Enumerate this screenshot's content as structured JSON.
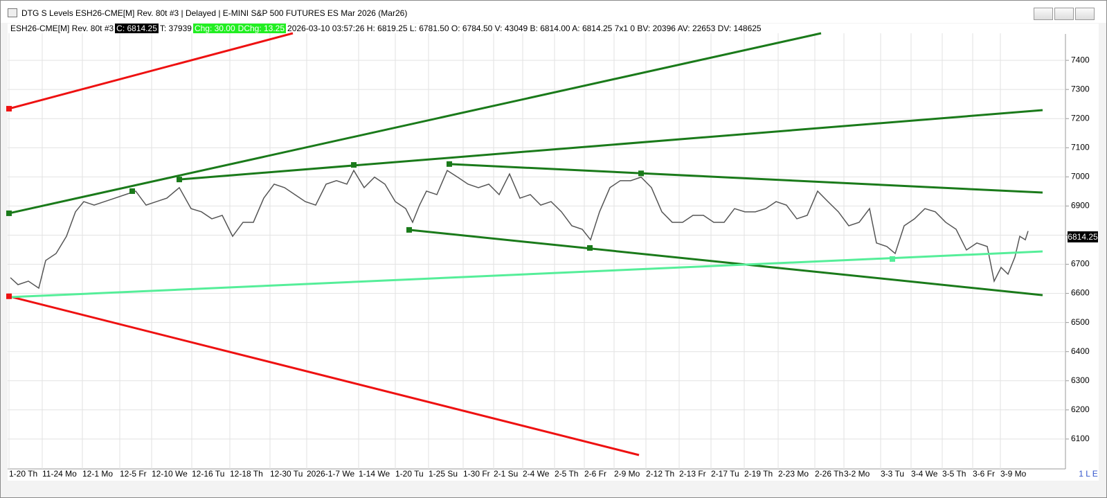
{
  "window": {
    "title": "DTG S Levels ESH26-CME[M]  Rev. 80t #3 | Delayed | E-MINI S&P 500 FUTURES ES Mar 2026 (Mar26)"
  },
  "info_bar": {
    "symbol": "ESH26-CME[M]  Rev. 80t #3",
    "close": "C: 6814.25",
    "ticks": "T: 37939",
    "chg": "Chg: 30.00",
    "dchg": "DChg: 13.25",
    "details": "2026-03-10 03:57:26 H: 6819.25 L: 6781.50 O: 6784.50 V: 43049 B: 6814.00 A: 6814.25 7x1 0 BV: 20396 AV: 22653 DV: 148625"
  },
  "corner_label": "1 L E",
  "chart_data": {
    "type": "line",
    "last_price_label": "6814.25",
    "grid": true,
    "xlim": [
      0,
      1498
    ],
    "ylim": [
      6045,
      7493
    ],
    "yticks": [
      6100,
      6200,
      6300,
      6400,
      6500,
      6600,
      6700,
      6800,
      6900,
      7000,
      7100,
      7200,
      7300,
      7400
    ],
    "xticks": [
      {
        "value": 2,
        "label": "1-20 Th"
      },
      {
        "value": 50,
        "label": "11-24 Mo"
      },
      {
        "value": 108,
        "label": "12-1 Mo"
      },
      {
        "value": 162,
        "label": "12-5 Fr"
      },
      {
        "value": 208,
        "label": "12-10 We"
      },
      {
        "value": 266,
        "label": "12-16 Tu"
      },
      {
        "value": 321,
        "label": "12-18 Th"
      },
      {
        "value": 379,
        "label": "12-30 Tu"
      },
      {
        "value": 432,
        "label": "2026-1-7 We"
      },
      {
        "value": 507,
        "label": "1-14 We"
      },
      {
        "value": 560,
        "label": "1-20 Tu"
      },
      {
        "value": 608,
        "label": "1-25 Su"
      },
      {
        "value": 658,
        "label": "1-30 Fr"
      },
      {
        "value": 702,
        "label": "2-1 Su"
      },
      {
        "value": 744,
        "label": "2-4 We"
      },
      {
        "value": 790,
        "label": "2-5 Th"
      },
      {
        "value": 833,
        "label": "2-6 Fr"
      },
      {
        "value": 876,
        "label": "2-9 Mo"
      },
      {
        "value": 922,
        "label": "2-12 Th"
      },
      {
        "value": 970,
        "label": "2-13 Fr"
      },
      {
        "value": 1016,
        "label": "2-17 Tu"
      },
      {
        "value": 1064,
        "label": "2-19 Th"
      },
      {
        "value": 1113,
        "label": "2-23 Mo"
      },
      {
        "value": 1166,
        "label": "2-26 Th"
      },
      {
        "value": 1208,
        "label": "3-2 Mo"
      },
      {
        "value": 1261,
        "label": "3-3 Tu"
      },
      {
        "value": 1305,
        "label": "3-4 We"
      },
      {
        "value": 1350,
        "label": "3-5 Th"
      },
      {
        "value": 1394,
        "label": "3-6 Fr"
      },
      {
        "value": 1434,
        "label": "3-9 Mo"
      }
    ],
    "series": [
      {
        "color": "#555555",
        "x": [
          4,
          15,
          30,
          45,
          55,
          70,
          85,
          98,
          110,
          125,
          140,
          155,
          170,
          185,
          200,
          215,
          230,
          248,
          265,
          280,
          295,
          310,
          325,
          340,
          355,
          370,
          385,
          400,
          415,
          430,
          445,
          460,
          475,
          490,
          500,
          515,
          530,
          545,
          560,
          575,
          585,
          595,
          605,
          620,
          635,
          650,
          665,
          680,
          695,
          710,
          725,
          740,
          755,
          770,
          785,
          800,
          815,
          830,
          842,
          855,
          870,
          885,
          900,
          915,
          930,
          945,
          960,
          975,
          990,
          1005,
          1020,
          1035,
          1050,
          1065,
          1080,
          1095,
          1110,
          1125,
          1140,
          1155,
          1170,
          1185,
          1200,
          1215,
          1230,
          1245,
          1255,
          1270,
          1282,
          1295,
          1310,
          1325,
          1340,
          1355,
          1370,
          1385,
          1400,
          1415,
          1425,
          1435,
          1445,
          1455,
          1462,
          1470,
          1474
        ],
        "values": [
          6654,
          6630,
          6642,
          6618,
          6713,
          6737,
          6796,
          6880,
          6915,
          6903,
          6915,
          6927,
          6939,
          6951,
          6903,
          6915,
          6927,
          6963,
          6891,
          6880,
          6856,
          6868,
          6796,
          6844,
          6844,
          6927,
          6975,
          6963,
          6939,
          6915,
          6903,
          6975,
          6987,
          6975,
          7022,
          6963,
          6999,
          6975,
          6915,
          6891,
          6844,
          6903,
          6951,
          6939,
          7022,
          6999,
          6975,
          6963,
          6975,
          6939,
          7010,
          6927,
          6939,
          6903,
          6915,
          6880,
          6832,
          6820,
          6784,
          6880,
          6963,
          6987,
          6987,
          6999,
          6963,
          6880,
          6844,
          6844,
          6868,
          6868,
          6844,
          6844,
          6891,
          6880,
          6880,
          6891,
          6915,
          6903,
          6856,
          6868,
          6951,
          6915,
          6880,
          6832,
          6844,
          6891,
          6773,
          6761,
          6737,
          6832,
          6856,
          6891,
          6880,
          6844,
          6820,
          6749,
          6773,
          6761,
          6642,
          6689,
          6666,
          6725,
          6796,
          6784,
          6814
        ]
      }
    ],
    "trend_lines": [
      {
        "color": "#ee1111",
        "x": [
          2,
          412
        ],
        "values": [
          7234,
          7493
        ]
      },
      {
        "color": "#ee1111",
        "x": [
          2,
          912
        ],
        "values": [
          6590,
          6045
        ]
      },
      {
        "color": "#1a7a1a",
        "x": [
          2,
          1175
        ],
        "values": [
          6875,
          7493
        ]
      },
      {
        "color": "#1a7a1a",
        "x": [
          248,
          1495
        ],
        "values": [
          6991,
          7229
        ]
      },
      {
        "color": "#1a7a1a",
        "x": [
          638,
          1495
        ],
        "values": [
          7044,
          6946
        ]
      },
      {
        "color": "#1a7a1a",
        "x": [
          580,
          1495
        ],
        "values": [
          6818,
          6594
        ]
      },
      {
        "color": "#55ee99",
        "x": [
          2,
          1495
        ],
        "values": [
          6587,
          6744
        ]
      }
    ],
    "anchors": [
      {
        "color": "#ee1111",
        "x": 2,
        "value": 7234
      },
      {
        "color": "#ee1111",
        "x": 2,
        "value": 6590
      },
      {
        "color": "#1a7a1a",
        "x": 2,
        "value": 6875
      },
      {
        "color": "#1a7a1a",
        "x": 180,
        "value": 6951
      },
      {
        "color": "#1a7a1a",
        "x": 248,
        "value": 6991
      },
      {
        "color": "#1a7a1a",
        "x": 500,
        "value": 7041
      },
      {
        "color": "#1a7a1a",
        "x": 638,
        "value": 7044
      },
      {
        "color": "#1a7a1a",
        "x": 915,
        "value": 7012
      },
      {
        "color": "#1a7a1a",
        "x": 580,
        "value": 6818
      },
      {
        "color": "#1a7a1a",
        "x": 841,
        "value": 6756
      },
      {
        "color": "#55ee99",
        "x": 1278,
        "value": 6718
      }
    ]
  }
}
